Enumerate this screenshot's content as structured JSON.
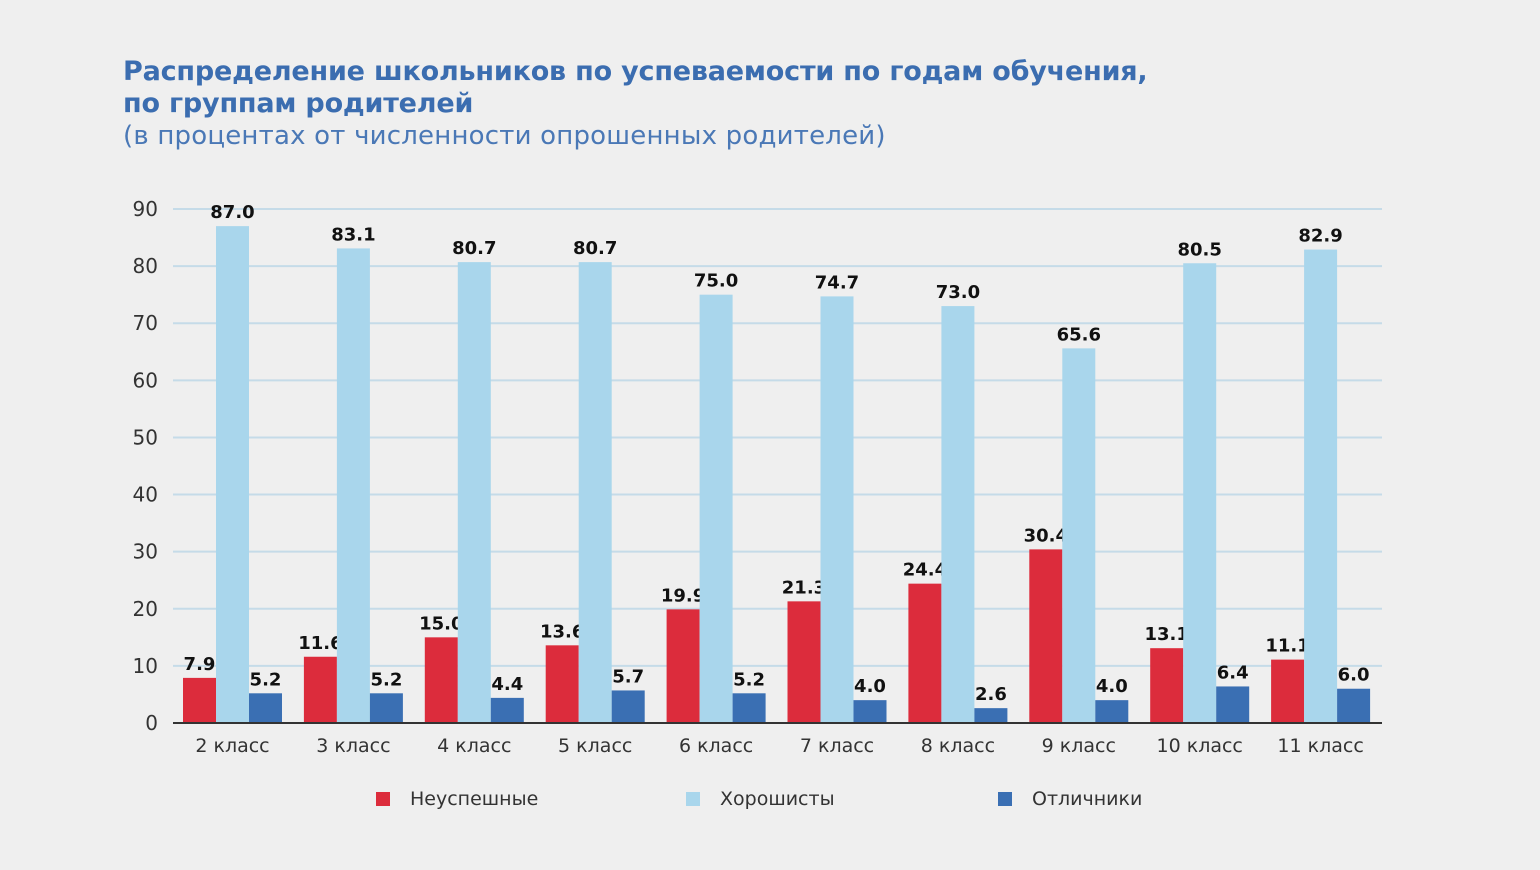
{
  "title": {
    "line1": "Распределение школьников по успеваемости по годам обучения,",
    "line2": "по группам родителей",
    "subtitle": "(в процентах от численности опрошенных родителей)"
  },
  "colors": {
    "unsuccessful": "#dc2c3c",
    "good": "#a9d6ec",
    "excellent": "#3a6fb3",
    "grid": "#c5dbe8",
    "axis": "#333333"
  },
  "chart_data": {
    "type": "bar",
    "categories": [
      "2 класс",
      "3 класс",
      "4 класс",
      "5 класс",
      "6 класс",
      "7 класс",
      "8 класс",
      "9 класс",
      "10 класс",
      "11 класс"
    ],
    "series": [
      {
        "name": "Неуспешные",
        "values": [
          7.9,
          11.6,
          15.0,
          13.6,
          19.9,
          21.3,
          24.4,
          30.4,
          13.1,
          11.1
        ]
      },
      {
        "name": "Хорошисты",
        "values": [
          87.0,
          83.1,
          80.7,
          80.7,
          75.0,
          74.7,
          73.0,
          65.6,
          80.5,
          82.9
        ]
      },
      {
        "name": "Отличники",
        "values": [
          5.2,
          5.2,
          4.4,
          5.7,
          5.2,
          4.0,
          2.6,
          4.0,
          6.4,
          6.0
        ]
      }
    ],
    "ylim": [
      0,
      90
    ],
    "yticks": [
      0,
      10,
      20,
      30,
      40,
      50,
      60,
      70,
      80,
      90
    ],
    "grid": true,
    "legend": "bottom"
  }
}
